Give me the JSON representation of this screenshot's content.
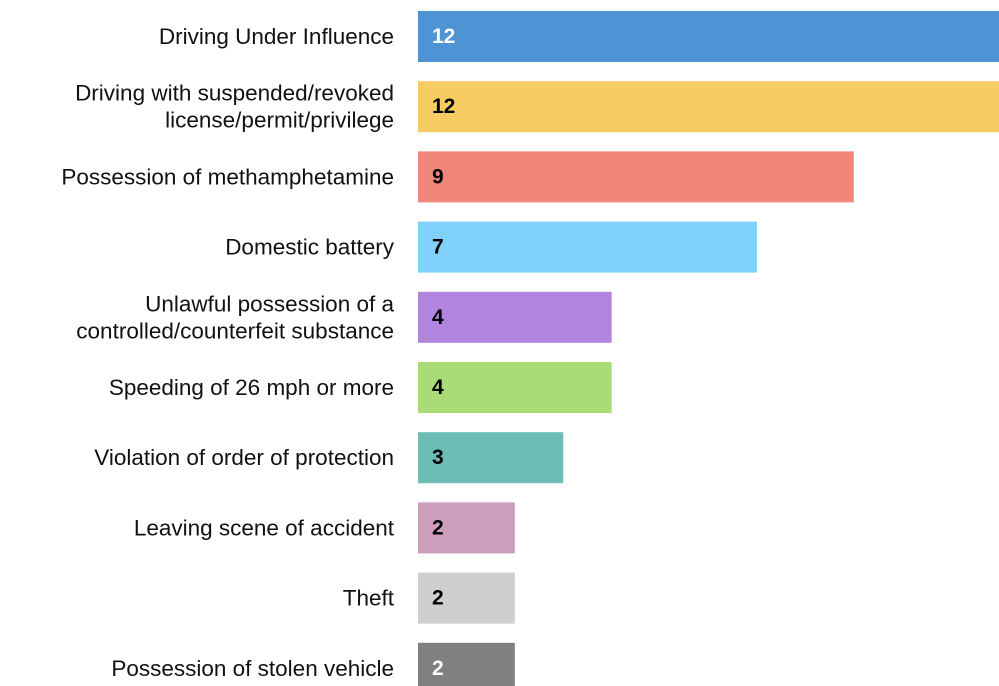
{
  "chart_data": {
    "type": "bar",
    "orientation": "horizontal",
    "categories": [
      [
        "Driving Under Influence"
      ],
      [
        "Driving with suspended/revoked",
        "license/permit/privilege"
      ],
      [
        "Possession of methamphetamine"
      ],
      [
        "Domestic battery"
      ],
      [
        "Unlawful possession of a",
        "controlled/counterfeit substance"
      ],
      [
        "Speeding of 26 mph or more"
      ],
      [
        "Violation of order of protection"
      ],
      [
        "Leaving scene of accident"
      ],
      [
        "Theft"
      ],
      [
        "Possession of stolen vehicle"
      ]
    ],
    "values": [
      12,
      12,
      9,
      7,
      4,
      4,
      3,
      2,
      2,
      2
    ],
    "colors": [
      "#4e94d4",
      "#f7cd63",
      "#f0857a",
      "#7fd1fb",
      "#b185de",
      "#a9dc76",
      "#6bbdb6",
      "#cc9ebc",
      "#d0cfcf",
      "#808080"
    ],
    "value_label_colors": [
      "#ffffff",
      "#000000",
      "#000000",
      "#000000",
      "#000000",
      "#000000",
      "#000000",
      "#000000",
      "#000000",
      "#ffffff"
    ],
    "xlim": [
      0,
      12
    ],
    "grid": false,
    "legend": "none",
    "title": "",
    "xlabel": "",
    "ylabel": ""
  }
}
